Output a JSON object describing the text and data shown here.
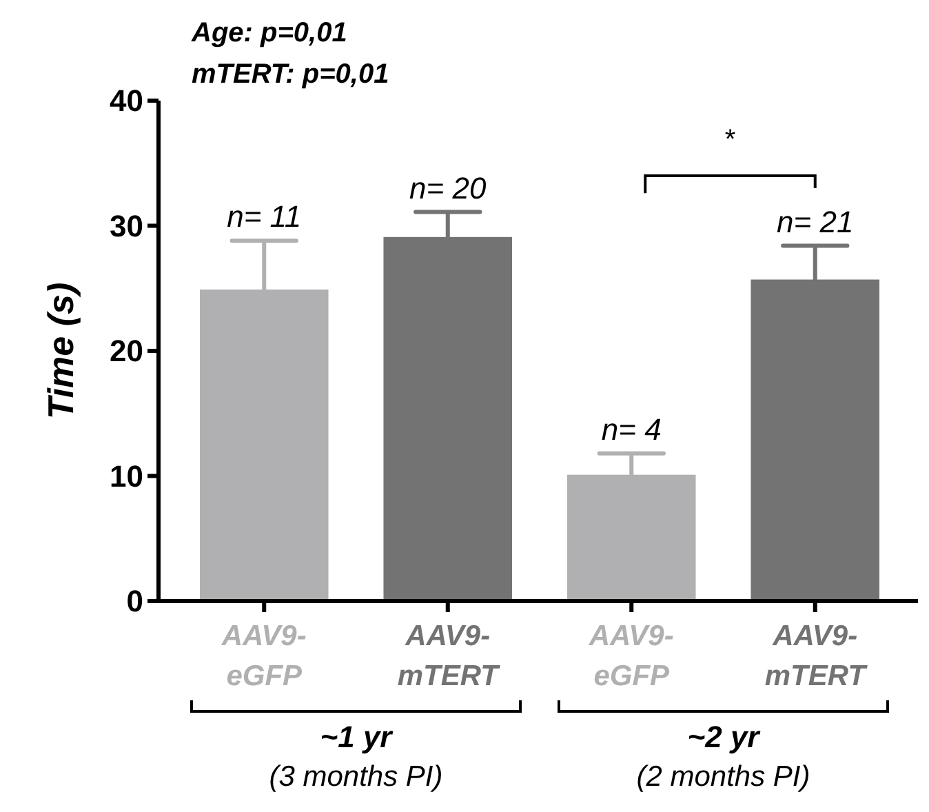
{
  "chart_data": {
    "type": "bar",
    "ylabel": "Time (s)",
    "categories": [
      "AAV9-eGFP",
      "AAV9-mTERT",
      "AAV9-eGFP",
      "AAV9-mTERT"
    ],
    "values": [
      24.9,
      29.1,
      10.1,
      25.7
    ],
    "errors": [
      3.9,
      2.0,
      1.7,
      2.7
    ],
    "colors": [
      "#b0b0b2",
      "#737373",
      "#b0b0b2",
      "#737373"
    ],
    "ylim": [
      0,
      40
    ],
    "yticks": [
      0,
      10,
      20,
      30,
      40
    ],
    "grid": false,
    "annotations": [
      "Age: p=0,01",
      "mTERT: p=0,01",
      "*",
      "~1 yr",
      "(3 months PI)",
      "~2 yr",
      "(2 months PI)",
      "n= 11",
      "n= 20",
      "n= 4",
      "n= 21"
    ]
  }
}
